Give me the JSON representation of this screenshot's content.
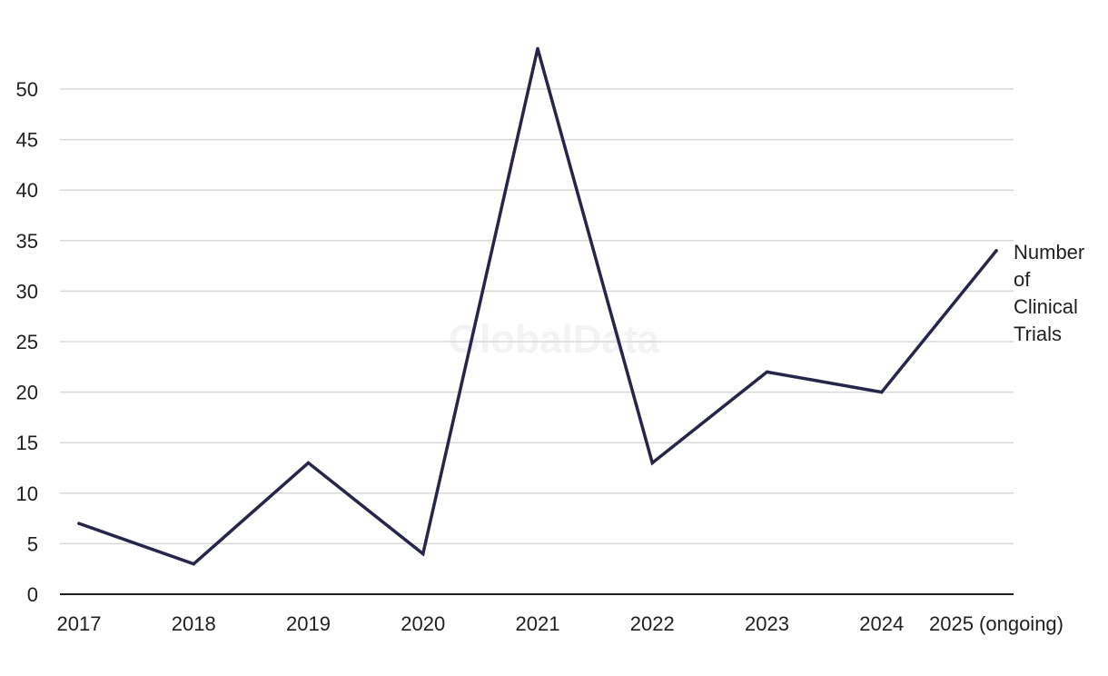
{
  "chart_data": {
    "type": "line",
    "x": [
      "2017",
      "2018",
      "2019",
      "2020",
      "2021",
      "2022",
      "2023",
      "2024",
      "2025 (ongoing)"
    ],
    "series": [
      {
        "name": "Number of Clinical Trials",
        "name_lines": [
          "Number",
          "of",
          "Clinical",
          "Trials"
        ],
        "values": [
          7,
          3,
          13,
          4,
          54,
          13,
          22,
          20,
          34
        ]
      }
    ],
    "title": "",
    "xlabel": "",
    "ylabel": "",
    "ylim": [
      0,
      54
    ],
    "yticks": [
      0,
      5,
      10,
      15,
      20,
      25,
      30,
      35,
      40,
      45,
      50
    ],
    "grid": true,
    "legend": "right-of-line-end",
    "colors": {
      "line": "#26264a",
      "grid": "#d9d9d9",
      "axis": "#1f1f1f",
      "text": "#1f1f1f"
    },
    "watermark": "GlobalData"
  }
}
